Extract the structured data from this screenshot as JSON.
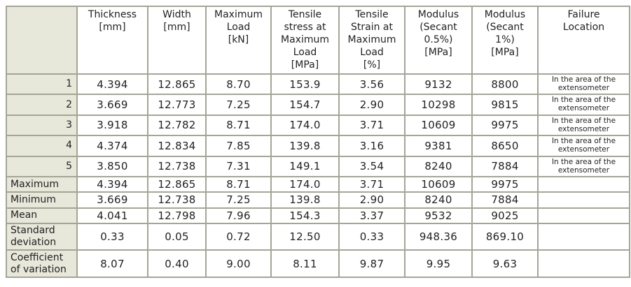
{
  "headers": [
    "",
    "Thickness\n[mm]",
    "Width\n[mm]",
    "Maximum\nLoad\n[kN]",
    "Tensile\nstress at\nMaximum\nLoad\n[MPa]",
    "Tensile\nStrain at\nMaximum\nLoad\n[%]",
    "Modulus\n(Secant\n0.5%)\n[MPa]",
    "Modulus\n(Secant\n1%)\n[MPa]",
    "Failure\nLocation"
  ],
  "rows": [
    {
      "label": "1",
      "values": [
        "4.394",
        "12.865",
        "8.70",
        "153.9",
        "3.56",
        "9132",
        "8800"
      ],
      "failure": "In the area of the\nextensometer"
    },
    {
      "label": "2",
      "values": [
        "3.669",
        "12.773",
        "7.25",
        "154.7",
        "2.90",
        "10298",
        "9815"
      ],
      "failure": "In the area of the\nextensometer"
    },
    {
      "label": "3",
      "values": [
        "3.918",
        "12.782",
        "8.71",
        "174.0",
        "3.71",
        "10609",
        "9975"
      ],
      "failure": "In the area of the\nextensometer"
    },
    {
      "label": "4",
      "values": [
        "4.374",
        "12.834",
        "7.85",
        "139.8",
        "3.16",
        "9381",
        "8650"
      ],
      "failure": "In the area of the\nextensometer"
    },
    {
      "label": "5",
      "values": [
        "3.850",
        "12.738",
        "7.31",
        "149.1",
        "3.54",
        "8240",
        "7884"
      ],
      "failure": "In the area of the\nextensometer"
    },
    {
      "label": "Maximum",
      "values": [
        "4.394",
        "12.865",
        "8.71",
        "174.0",
        "3.71",
        "10609",
        "9975"
      ],
      "failure": ""
    },
    {
      "label": "Minimum",
      "values": [
        "3.669",
        "12.738",
        "7.25",
        "139.8",
        "2.90",
        "8240",
        "7884"
      ],
      "failure": ""
    },
    {
      "label": "Mean",
      "values": [
        "4.041",
        "12.798",
        "7.96",
        "154.3",
        "3.37",
        "9532",
        "9025"
      ],
      "failure": ""
    },
    {
      "label": "Standard\ndeviation",
      "values": [
        "0.33",
        "0.05",
        "0.72",
        "12.50",
        "0.33",
        "948.36",
        "869.10"
      ],
      "failure": ""
    },
    {
      "label": "Coefficient\nof variation",
      "values": [
        "8.07",
        "0.40",
        "9.00",
        "8.11",
        "9.87",
        "9.95",
        "9.63"
      ],
      "failure": ""
    }
  ],
  "colors": {
    "label_background": "#e7e7da",
    "border": "#a5a596",
    "text": "#222222"
  }
}
